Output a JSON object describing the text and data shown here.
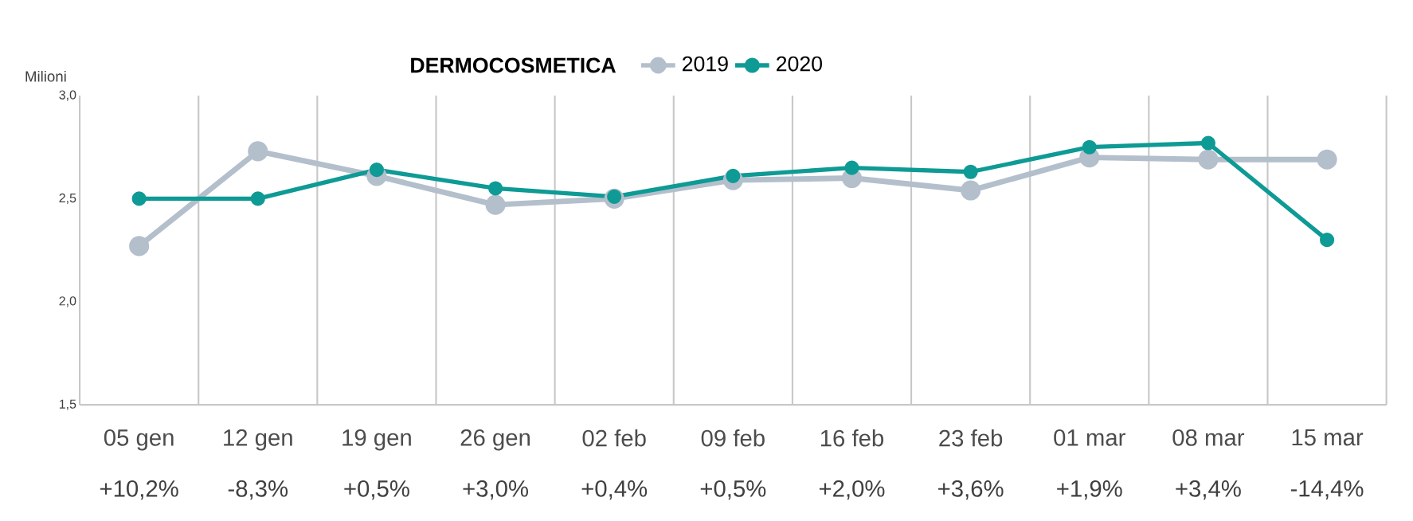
{
  "chart_data": {
    "type": "line",
    "legend_title": "DERMOCOSMETICA",
    "ylabel": "Milioni",
    "categories": [
      "05 gen",
      "12 gen",
      "19 gen",
      "26 gen",
      "02 feb",
      "09 feb",
      "16 feb",
      "23 feb",
      "01 mar",
      "08 mar",
      "15 mar"
    ],
    "series": [
      {
        "name": "2019",
        "color": "#b4bfcc",
        "values": [
          2.27,
          2.73,
          2.61,
          2.47,
          2.5,
          2.59,
          2.6,
          2.54,
          2.7,
          2.69,
          2.69
        ]
      },
      {
        "name": "2020",
        "color": "#0e9a95",
        "values": [
          2.5,
          2.5,
          2.64,
          2.55,
          2.51,
          2.61,
          2.65,
          2.63,
          2.75,
          2.77,
          2.3
        ]
      }
    ],
    "annotations": [
      "+10,2%",
      "-8,3%",
      "+0,5%",
      "+3,0%",
      "+0,4%",
      "+0,5%",
      "+2,0%",
      "+3,6%",
      "+1,9%",
      "+3,4%",
      "-14,4%"
    ],
    "ylim": [
      1.5,
      3.0
    ],
    "yticks": [
      {
        "value": 1.5,
        "label": "1,5"
      },
      {
        "value": 2.0,
        "label": "2,0"
      },
      {
        "value": 2.5,
        "label": "2,5"
      },
      {
        "value": 3.0,
        "label": "3,0"
      }
    ],
    "grid": "x",
    "legend": "top",
    "marker": "circle",
    "line_style": "solid"
  }
}
